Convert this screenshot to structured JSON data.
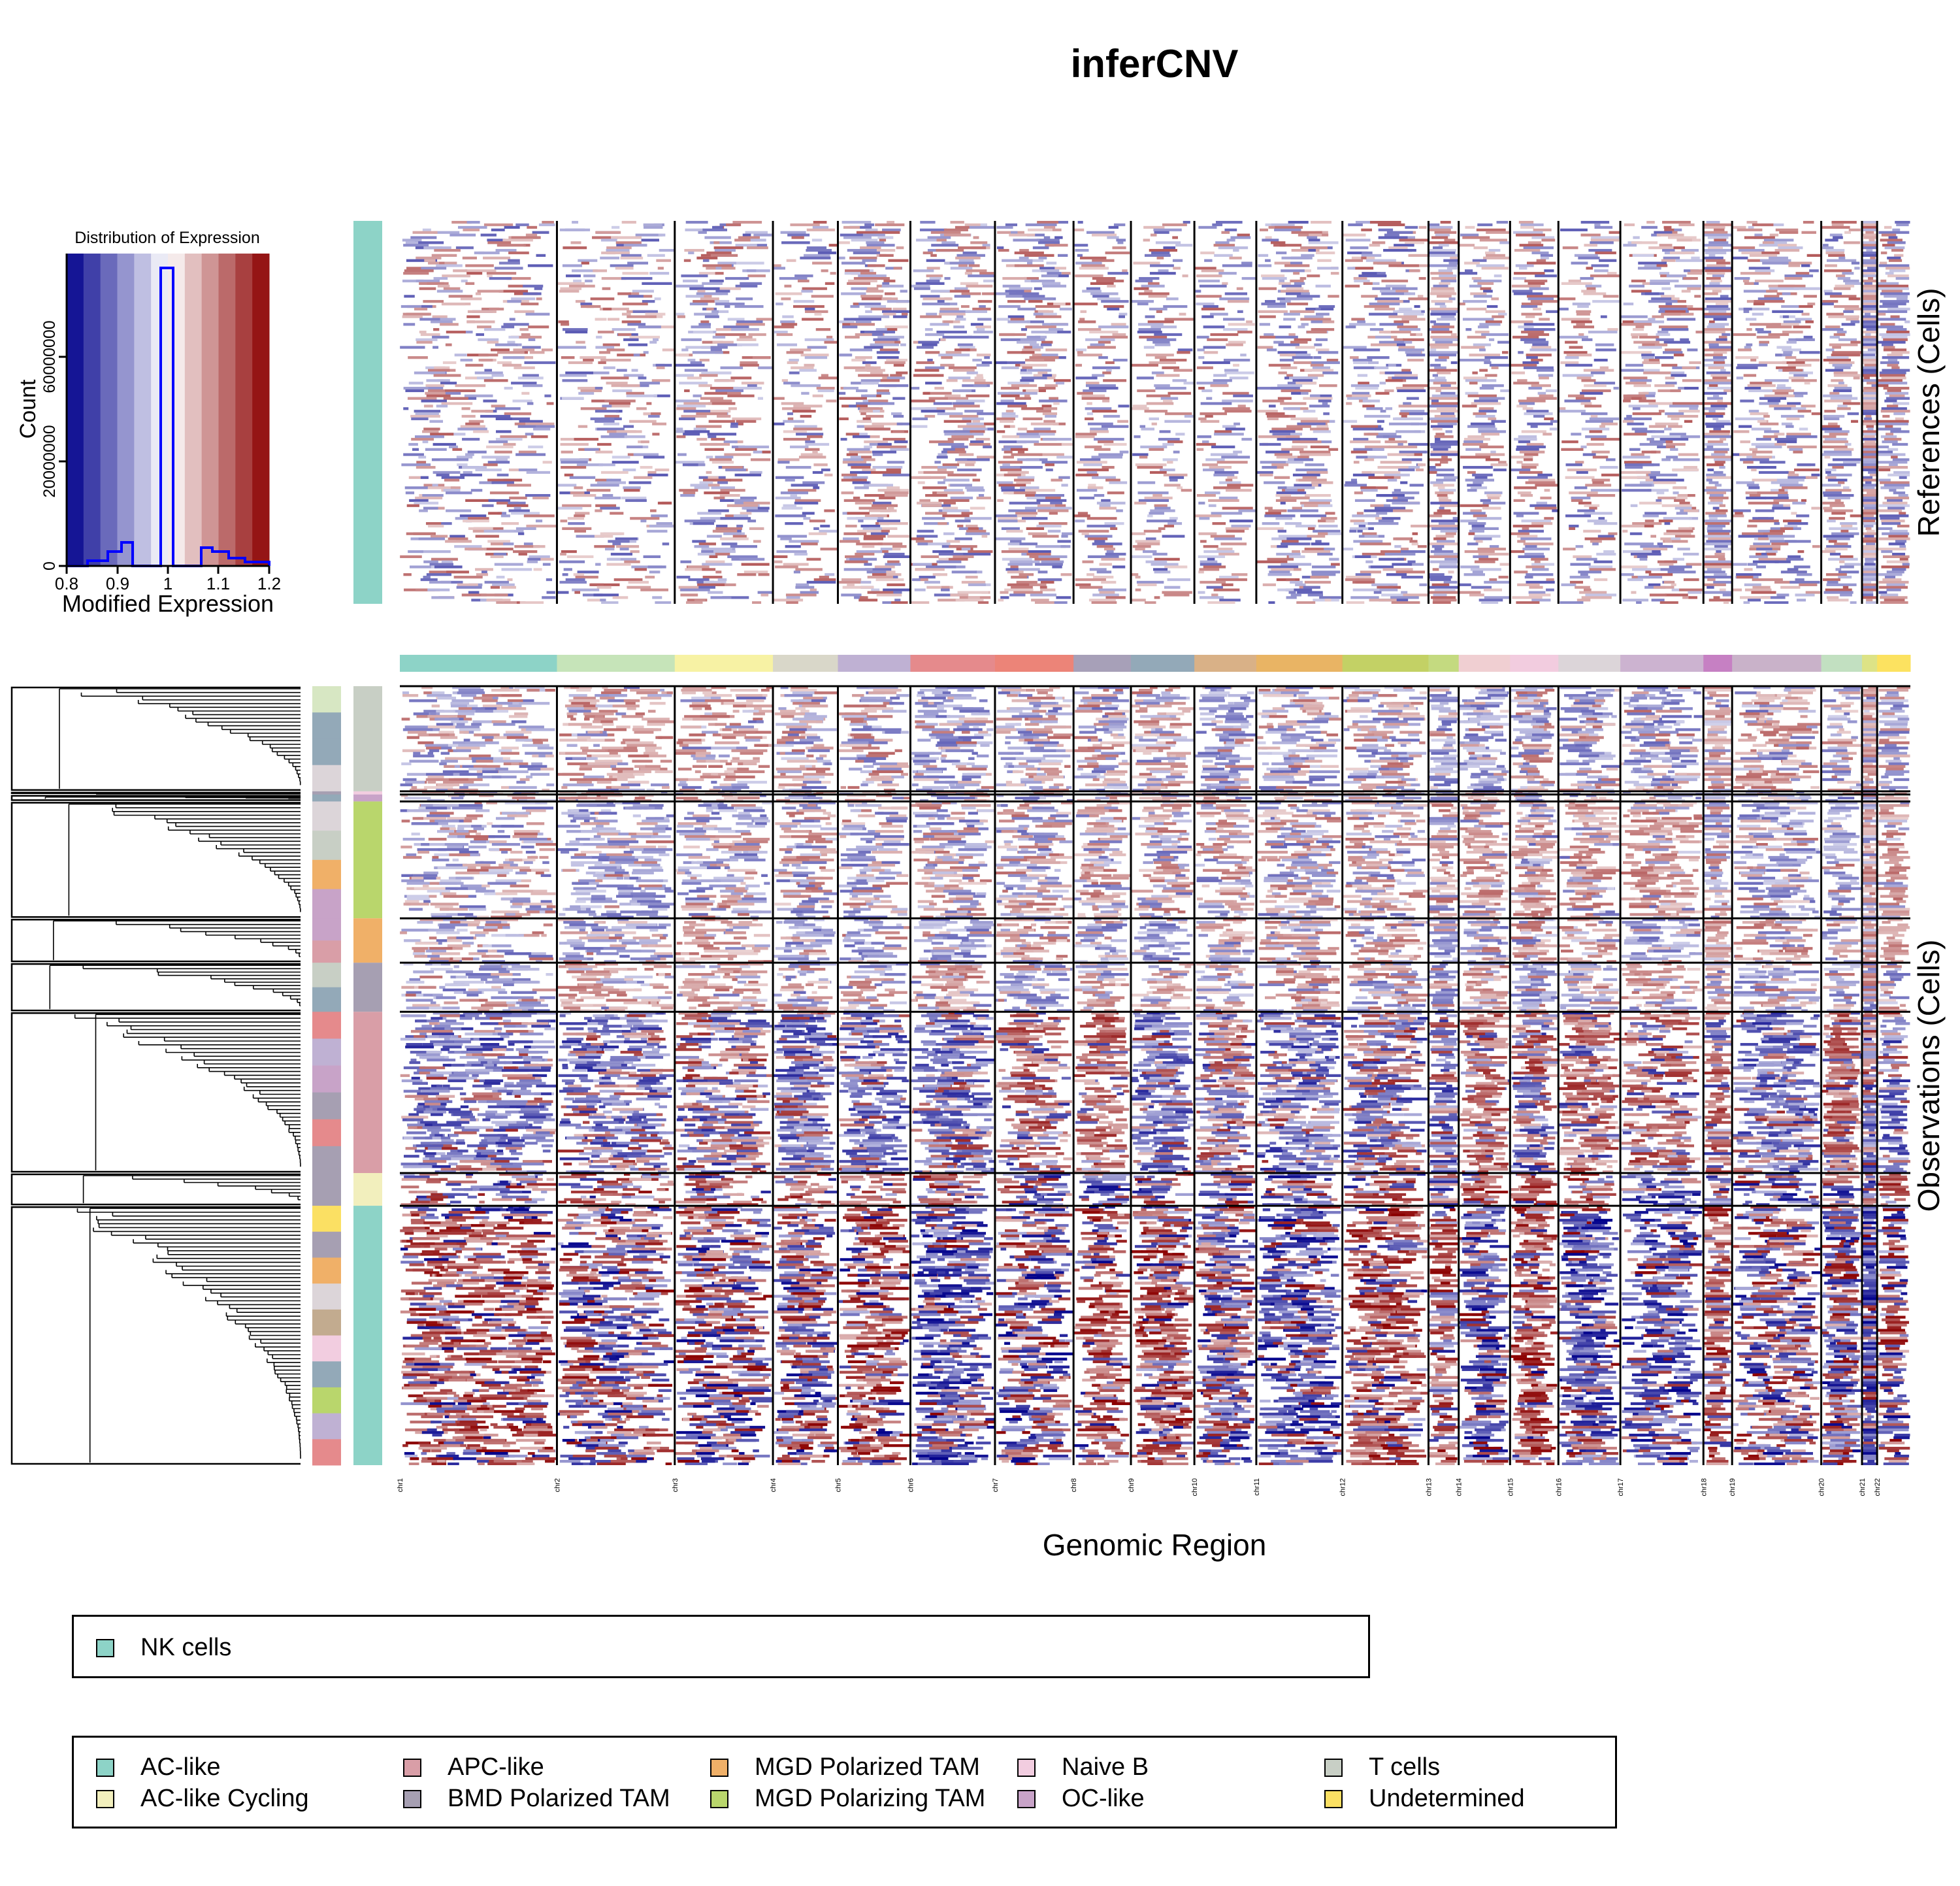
{
  "title": "inferCNV",
  "histogram": {
    "title": "Distribution of Expression",
    "xlabel": "Modified Expression",
    "ylabel": "Count",
    "x_ticks": [
      "0.8",
      "0.9",
      "1",
      "1.1",
      "1.2"
    ],
    "y_ticks": [
      "0",
      "20000000",
      "60000000"
    ]
  },
  "chart_data": {
    "type": "heatmap",
    "title": "inferCNV",
    "xlabel": "Genomic Region",
    "reference_label": "References (Cells)",
    "observation_label": "Observations (Cells)",
    "color_scale": {
      "low": "#00008B",
      "mid": "#FFFFFF",
      "high": "#8B0000",
      "range": [
        0.8,
        1.2
      ]
    },
    "chromosomes": [
      "chr1",
      "chr2",
      "chr3",
      "chr4",
      "chr5",
      "chr6",
      "chr7",
      "chr8",
      "chr9",
      "chr10",
      "chr11",
      "chr12",
      "chr13",
      "chr14",
      "chr15",
      "chr16",
      "chr17",
      "chr18",
      "chr19",
      "chr20",
      "chr21",
      "chr22"
    ],
    "chromosome_fraction": [
      0.104,
      0.078,
      0.065,
      0.043,
      0.048,
      0.056,
      0.052,
      0.038,
      0.042,
      0.041,
      0.057,
      0.057,
      0.02,
      0.034,
      0.032,
      0.041,
      0.055,
      0.019,
      0.059,
      0.027,
      0.01,
      0.022
    ],
    "chromosome_colors": [
      "#8dd3c7",
      "#c6e4b9",
      "#f7f2a4",
      "#d9d7c9",
      "#bfb1d3",
      "#e58a8c",
      "#ec8478",
      "#a7a0b8",
      "#93a9b8",
      "#d9b187",
      "#e9b464",
      "#c3d165",
      "#c4da80",
      "#f0cfd2",
      "#f2ccdf",
      "#dcd5d9",
      "#ccb3d0",
      "#c680c3",
      "#c9b2c9",
      "#c2e0c1",
      "#dde386",
      "#fce260"
    ],
    "reference_groups": [
      "NK cells"
    ],
    "observation_groups": [
      "AC-like",
      "AC-like Cycling",
      "APC-like",
      "BMD Polarized TAM",
      "MGD Polarized TAM",
      "MGD Polarizing TAM",
      "Naive B",
      "OC-like",
      "T cells",
      "Undetermined"
    ],
    "observation_group_fraction": [
      0.333,
      0.042,
      0.207,
      0.063,
      0.057,
      0.15,
      0.004,
      0.009,
      0.104,
      0.031
    ],
    "group_colors": {
      "NK cells": "#8dd3c7",
      "AC-like": "#8dd3c7",
      "AC-like Cycling": "#f2efbd",
      "APC-like": "#d99ea7",
      "BMD Polarized TAM": "#a69fb2",
      "MGD Polarized TAM": "#f0b068",
      "MGD Polarizing TAM": "#b9d66c",
      "Naive B": "#f2cde0",
      "OC-like": "#c8a3c8",
      "T cells": "#c8cfc5",
      "Undetermined": "#fbe063"
    }
  },
  "legend_reference": {
    "items": [
      {
        "label": "NK cells",
        "color": "#8dd3c7"
      }
    ]
  },
  "legend_observation": {
    "items": [
      {
        "label": "AC-like",
        "color": "#8dd3c7"
      },
      {
        "label": "AC-like Cycling",
        "color": "#f2efbd"
      },
      {
        "label": "APC-like",
        "color": "#d99ea7"
      },
      {
        "label": "BMD Polarized TAM",
        "color": "#a69fb2"
      },
      {
        "label": "MGD Polarized TAM",
        "color": "#f0b068"
      },
      {
        "label": "MGD Polarizing TAM",
        "color": "#b9d66c"
      },
      {
        "label": "Naive B",
        "color": "#f2cde0"
      },
      {
        "label": "OC-like",
        "color": "#c8a3c8"
      },
      {
        "label": "T cells",
        "color": "#c8cfc5"
      },
      {
        "label": "Undetermined",
        "color": "#fbe063"
      }
    ]
  }
}
